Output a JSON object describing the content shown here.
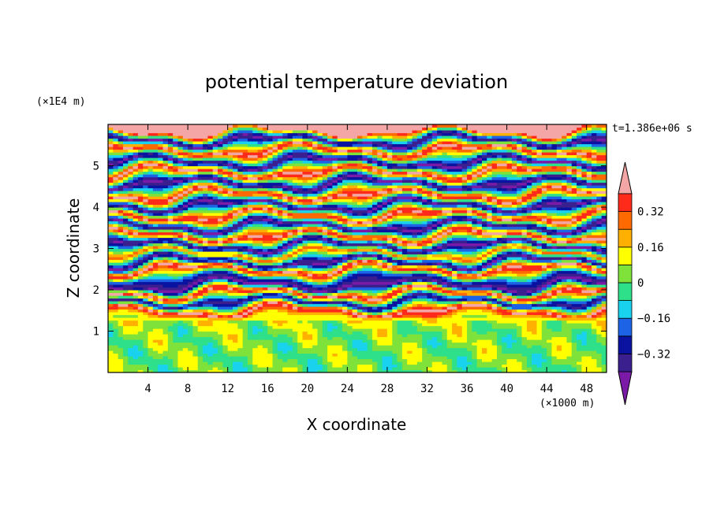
{
  "chart_data": {
    "type": "heatmap",
    "title": "potential temperature deviation",
    "xlabel": "X coordinate",
    "ylabel": "Z coordinate",
    "x_unit_label": "(×1000 m)",
    "y_unit_label": "(×1E4 m)",
    "time_label": "t=1.386e+06 s",
    "x_ticks": [
      4,
      8,
      12,
      16,
      20,
      24,
      28,
      32,
      36,
      40,
      44,
      48
    ],
    "y_ticks": [
      1,
      2,
      3,
      4,
      5
    ],
    "xlim": [
      0,
      50
    ],
    "ylim": [
      0,
      6
    ],
    "colorbar": {
      "levels": [
        -0.4,
        -0.32,
        -0.24,
        -0.16,
        -0.08,
        0,
        0.08,
        0.16,
        0.24,
        0.32,
        0.4
      ],
      "tick_labels": [
        "0.32",
        "0.16",
        "0",
        "−0.16",
        "−0.32"
      ],
      "tick_values": [
        0.32,
        0.16,
        0,
        -0.16,
        -0.32
      ],
      "colors": [
        "#7a1aa6",
        "#3b1f8f",
        "#0a12a0",
        "#1c63e6",
        "#18d2ee",
        "#2fe08a",
        "#7fe23a",
        "#ffff00",
        "#ffb000",
        "#ff6a00",
        "#ff2a1a",
        "#f4a6a6"
      ],
      "extend": "both"
    },
    "bands": [
      {
        "z": 0.25,
        "value": 0.02
      },
      {
        "z": 0.75,
        "value": 0.03
      },
      {
        "z": 1.05,
        "value": 0.04
      },
      {
        "z": 1.3,
        "value": 0.1
      },
      {
        "z": 1.5,
        "value": 0.45
      },
      {
        "z": 1.72,
        "value": -0.4
      },
      {
        "z": 1.92,
        "value": 0.45
      },
      {
        "z": 2.12,
        "value": -0.45
      },
      {
        "z": 2.3,
        "value": -0.2
      },
      {
        "z": 2.5,
        "value": 0.45
      },
      {
        "z": 2.68,
        "value": -0.45
      },
      {
        "z": 2.88,
        "value": 0.3
      },
      {
        "z": 3.08,
        "value": -0.45
      },
      {
        "z": 3.3,
        "value": 0.45
      },
      {
        "z": 3.55,
        "value": -0.45
      },
      {
        "z": 3.8,
        "value": 0.45
      },
      {
        "z": 4.05,
        "value": -0.45
      },
      {
        "z": 4.3,
        "value": 0.45
      },
      {
        "z": 4.58,
        "value": -0.45
      },
      {
        "z": 4.85,
        "value": 0.45
      },
      {
        "z": 5.1,
        "value": -0.45
      },
      {
        "z": 5.38,
        "value": 0.45
      },
      {
        "z": 5.62,
        "value": -0.45
      },
      {
        "z": 5.85,
        "value": 0.45
      }
    ]
  }
}
